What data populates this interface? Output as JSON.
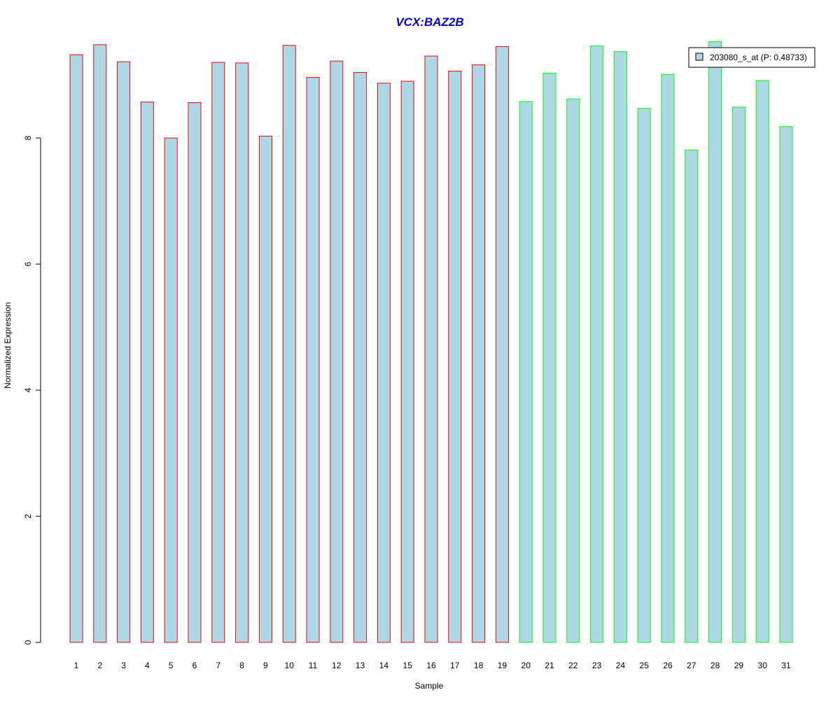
{
  "chart_data": {
    "type": "bar",
    "title": "VCX:BAZ2B",
    "xlabel": "Sample",
    "ylabel": "Normalized Expression",
    "ylim": [
      0,
      9.6
    ],
    "yticks": [
      0,
      2,
      4,
      6,
      8
    ],
    "categories": [
      "1",
      "2",
      "3",
      "4",
      "5",
      "6",
      "7",
      "8",
      "9",
      "10",
      "11",
      "12",
      "13",
      "14",
      "15",
      "16",
      "17",
      "18",
      "19",
      "20",
      "21",
      "22",
      "23",
      "24",
      "25",
      "26",
      "27",
      "28",
      "29",
      "30",
      "31"
    ],
    "series": [
      {
        "name": "203080_s_at (P: 0.48733)",
        "values": [
          9.32,
          9.48,
          9.21,
          8.57,
          8.0,
          8.56,
          9.2,
          9.19,
          8.03,
          9.47,
          8.96,
          9.22,
          9.04,
          8.87,
          8.9,
          9.3,
          9.06,
          9.16,
          9.45,
          8.58,
          9.03,
          8.62,
          9.46,
          9.37,
          8.47,
          9.01,
          7.81,
          9.53,
          8.49,
          8.91,
          8.18
        ]
      }
    ],
    "groups": [
      "red",
      "red",
      "red",
      "red",
      "red",
      "red",
      "red",
      "red",
      "red",
      "red",
      "red",
      "red",
      "red",
      "red",
      "red",
      "red",
      "red",
      "red",
      "red",
      "green",
      "green",
      "green",
      "green",
      "green",
      "green",
      "green",
      "green",
      "green",
      "green",
      "green",
      "green"
    ],
    "legend_position": "top-right",
    "grid": false,
    "colors": {
      "bar_fill": "#add8e6",
      "red": "#ff0000",
      "green": "#00ff00",
      "title": "#0000cd"
    }
  }
}
